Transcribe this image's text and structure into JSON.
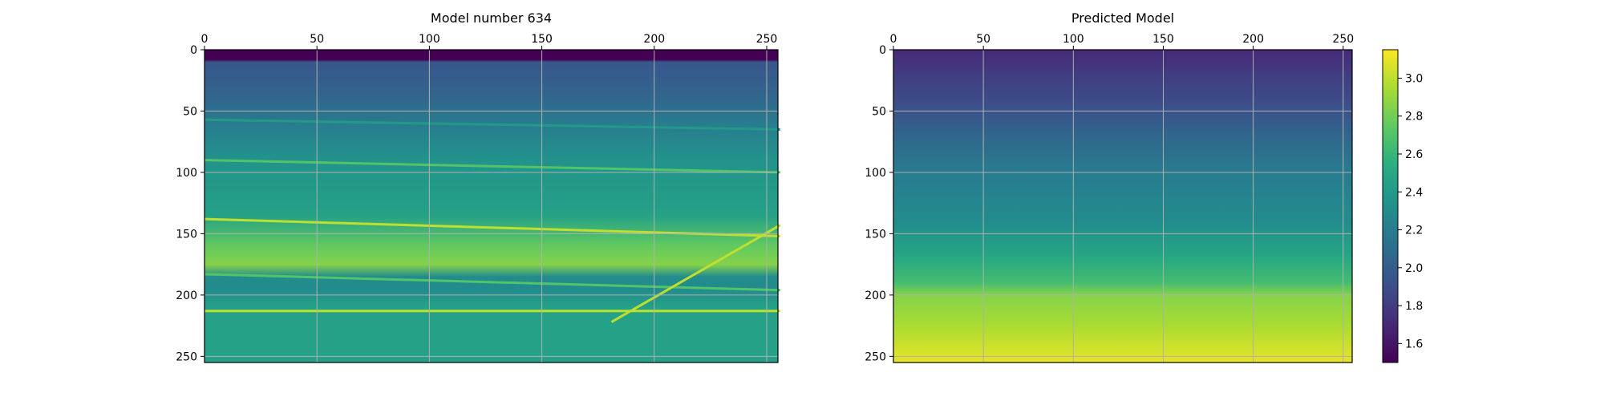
{
  "chart_data": [
    {
      "type": "heatmap",
      "title": "Model number 634",
      "xlabel": "",
      "ylabel": "",
      "x_ticks": [
        0,
        50,
        100,
        150,
        200,
        250
      ],
      "y_ticks": [
        0,
        50,
        100,
        150,
        200,
        250
      ],
      "xlim": [
        0,
        255
      ],
      "ylim": [
        255,
        0
      ],
      "x_axis_position": "top",
      "grid": true,
      "colormap": "viridis",
      "background_gradient": [
        [
          0,
          1.5
        ],
        [
          8,
          1.5
        ],
        [
          10,
          1.95
        ],
        [
          40,
          2.05
        ],
        [
          60,
          2.2
        ],
        [
          90,
          2.35
        ],
        [
          135,
          2.45
        ],
        [
          160,
          2.75
        ],
        [
          175,
          2.85
        ],
        [
          185,
          2.3
        ],
        [
          195,
          2.3
        ],
        [
          210,
          2.45
        ],
        [
          255,
          2.45
        ]
      ],
      "layer_lines": [
        {
          "value": 2.4,
          "points": [
            [
              0,
              57
            ],
            [
              256,
              65
            ]
          ]
        },
        {
          "value": 2.7,
          "points": [
            [
              0,
              90
            ],
            [
              256,
              100
            ]
          ]
        },
        {
          "value": 3.0,
          "points": [
            [
              0,
              138
            ],
            [
              256,
              152
            ]
          ]
        },
        {
          "value": 2.7,
          "points": [
            [
              0,
              183
            ],
            [
              256,
              196
            ]
          ]
        },
        {
          "value": 3.0,
          "points": [
            [
              0,
              213
            ],
            [
              256,
              213
            ]
          ]
        },
        {
          "value": 3.0,
          "points": [
            [
              181,
              222
            ],
            [
              256,
              143
            ]
          ]
        }
      ]
    },
    {
      "type": "heatmap",
      "title": "Predicted Model",
      "xlabel": "",
      "ylabel": "",
      "x_ticks": [
        0,
        50,
        100,
        150,
        200,
        250
      ],
      "y_ticks": [
        0,
        50,
        100,
        150,
        200,
        250
      ],
      "xlim": [
        0,
        255
      ],
      "ylim": [
        255,
        0
      ],
      "x_axis_position": "top",
      "grid": true,
      "colormap": "viridis",
      "background_gradient": [
        [
          0,
          1.7
        ],
        [
          20,
          1.8
        ],
        [
          45,
          1.9
        ],
        [
          70,
          2.05
        ],
        [
          100,
          2.2
        ],
        [
          140,
          2.3
        ],
        [
          170,
          2.5
        ],
        [
          190,
          2.65
        ],
        [
          200,
          2.85
        ],
        [
          225,
          2.95
        ],
        [
          255,
          3.1
        ]
      ],
      "colorbar": {
        "min": 1.5,
        "max": 3.15,
        "ticks": [
          "1.6",
          "1.8",
          "2.0",
          "2.2",
          "2.4",
          "2.6",
          "2.8",
          "3.0"
        ]
      }
    }
  ]
}
